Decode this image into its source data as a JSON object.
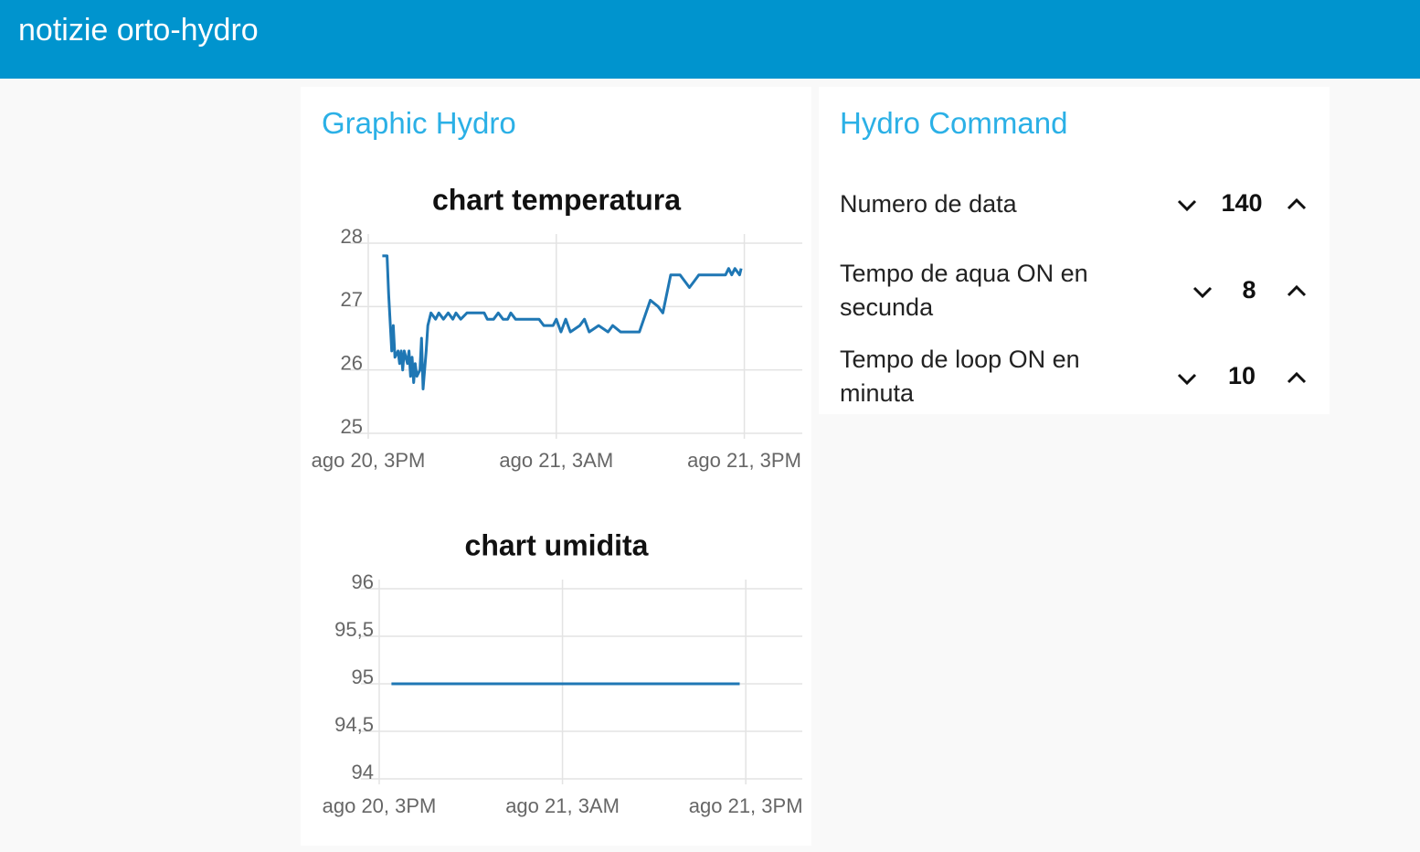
{
  "header": {
    "title": "notizie orto-hydro"
  },
  "groups": [
    {
      "title": "Graphic Hydro",
      "charts": [
        {
          "type": "line",
          "title": "chart temperatura",
          "x": [
            0.9,
            1.2,
            1.3,
            1.5,
            1.6,
            1.7,
            1.9,
            2.0,
            2.1,
            2.2,
            2.3,
            2.5,
            2.6,
            2.7,
            2.8,
            2.9,
            3.0,
            3.1,
            3.3,
            3.4,
            3.5,
            3.7,
            3.8,
            4.0,
            4.3,
            4.5,
            4.8,
            5.1,
            5.4,
            5.6,
            5.9,
            6.3,
            7.4,
            7.6,
            8.0,
            8.3,
            8.6,
            8.9,
            9.1,
            9.4,
            10.9,
            11.2,
            11.8,
            12.0,
            12.3,
            12.6,
            12.9,
            13.5,
            13.8,
            14.1,
            14.7,
            15.3,
            15.6,
            16.1,
            17.3,
            18.0,
            18.5,
            18.8,
            19.3,
            19.9,
            20.2,
            20.5,
            20.8,
            21.1,
            22.8,
            23.0,
            23.2,
            23.4,
            23.7,
            23.8
          ],
          "series": [
            {
              "color": "#1f77b4",
              "values": [
                27.8,
                27.8,
                27.2,
                26.3,
                26.7,
                26.2,
                26.3,
                26.1,
                26.3,
                26.0,
                26.3,
                26.1,
                26.3,
                25.9,
                26.2,
                25.8,
                26.1,
                25.9,
                26.0,
                26.5,
                25.7,
                26.3,
                26.7,
                26.9,
                26.8,
                26.9,
                26.8,
                26.9,
                26.8,
                26.9,
                26.8,
                26.9,
                26.9,
                26.8,
                26.8,
                26.9,
                26.8,
                26.8,
                26.9,
                26.8,
                26.8,
                26.7,
                26.7,
                26.8,
                26.6,
                26.8,
                26.6,
                26.7,
                26.8,
                26.6,
                26.7,
                26.6,
                26.7,
                26.6,
                26.6,
                27.1,
                27.0,
                26.9,
                27.5,
                27.5,
                27.4,
                27.3,
                27.4,
                27.5,
                27.5,
                27.6,
                27.5,
                27.6,
                27.5,
                27.6
              ]
            }
          ],
          "xlim": [
            0,
            27.7
          ],
          "xticks": [
            {
              "value": 0,
              "label": "ago 20, 3PM"
            },
            {
              "value": 12,
              "label": "ago 21, 3AM"
            },
            {
              "value": 24,
              "label": "ago 21, 3PM"
            }
          ],
          "ylim": [
            25,
            28
          ],
          "yticks": [
            25,
            26,
            27,
            28
          ],
          "grid": true
        },
        {
          "type": "line",
          "title": "chart umidita",
          "x": [
            0.8,
            5,
            10,
            15,
            20,
            23.6
          ],
          "series": [
            {
              "color": "#1f77b4",
              "values": [
                95,
                95,
                95,
                95,
                95,
                95
              ]
            }
          ],
          "xlim": [
            0,
            27.7
          ],
          "xticks": [
            {
              "value": 0,
              "label": "ago 20, 3PM"
            },
            {
              "value": 12,
              "label": "ago 21, 3AM"
            },
            {
              "value": 24,
              "label": "ago 21, 3PM"
            }
          ],
          "ylim": [
            94,
            96
          ],
          "yticks": [
            94,
            {
              "value": 94.5,
              "label": "94,5"
            },
            95,
            {
              "value": 95.5,
              "label": "95,5"
            },
            96
          ],
          "grid": true
        }
      ]
    },
    {
      "title": "Hydro Command",
      "controls": [
        {
          "label": "Numero de data",
          "value": 140
        },
        {
          "label": "Tempo de aqua ON en secunda",
          "value": 8
        },
        {
          "label": "Tempo de loop ON en minuta",
          "value": 10
        }
      ]
    }
  ]
}
